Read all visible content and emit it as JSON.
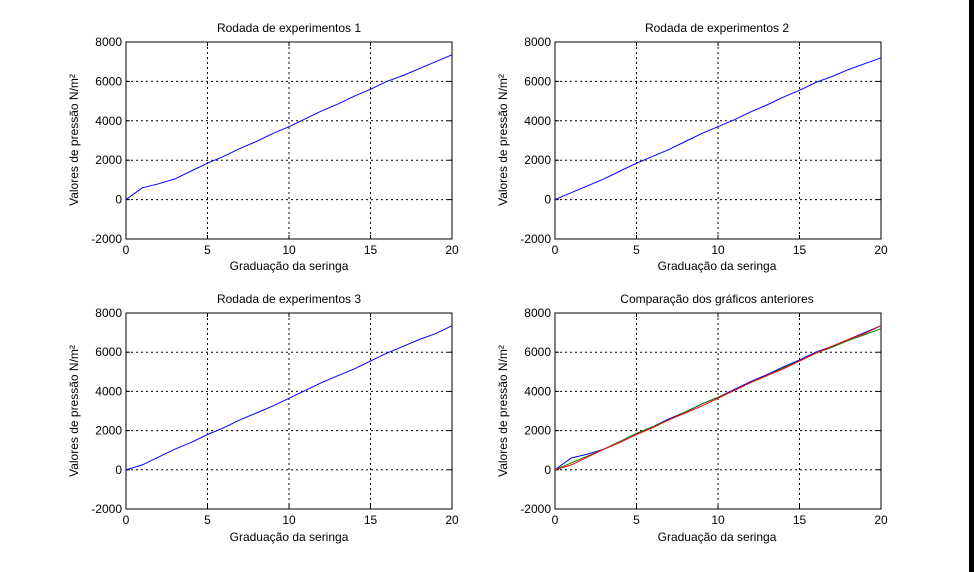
{
  "figure": {
    "background": "#ffffff",
    "axis_color": "#000000",
    "grid_color": "#000000"
  },
  "chart_data": [
    {
      "type": "line",
      "title": "Rodada de experimentos 1",
      "xlabel": "Graduação da seringa",
      "ylabel": "Valores de pressão N/m²",
      "xlim": [
        0,
        20
      ],
      "ylim": [
        -2000,
        8000
      ],
      "xticks": [
        "0",
        "5",
        "10",
        "15",
        "20"
      ],
      "yticks": [
        "-2000",
        "0",
        "2000",
        "4000",
        "6000",
        "8000"
      ],
      "grid": true,
      "series": [
        {
          "color": "#0000ff",
          "x": [
            0,
            0.5,
            1,
            2,
            3,
            4,
            5,
            6,
            7,
            8,
            9,
            10,
            11,
            12,
            13,
            14,
            15,
            16,
            17,
            18,
            19,
            20
          ],
          "y": [
            0,
            300,
            600,
            800,
            1050,
            1450,
            1850,
            2200,
            2600,
            2950,
            3350,
            3700,
            4100,
            4500,
            4850,
            5250,
            5600,
            6000,
            6300,
            6650,
            7000,
            7350
          ]
        }
      ]
    },
    {
      "type": "line",
      "title": "Rodada de experimentos 2",
      "xlabel": "Graduação da seringa",
      "ylabel": "Valores de pressão N/m²",
      "xlim": [
        0,
        20
      ],
      "ylim": [
        -2000,
        8000
      ],
      "xticks": [
        "0",
        "5",
        "10",
        "15",
        "20"
      ],
      "yticks": [
        "-2000",
        "0",
        "2000",
        "4000",
        "6000",
        "8000"
      ],
      "grid": true,
      "series": [
        {
          "color": "#0000ff",
          "x": [
            0,
            1,
            2,
            3,
            4,
            5,
            6,
            7,
            8,
            9,
            10,
            11,
            12,
            13,
            14,
            15,
            16,
            17,
            18,
            19,
            20
          ],
          "y": [
            0,
            350,
            700,
            1050,
            1450,
            1850,
            2200,
            2550,
            2950,
            3350,
            3700,
            4050,
            4450,
            4800,
            5200,
            5550,
            5950,
            6250,
            6600,
            6900,
            7200
          ]
        }
      ]
    },
    {
      "type": "line",
      "title": "Rodada de experimentos 3",
      "xlabel": "Graduação da seringa",
      "ylabel": "Valores de pressão N/m²",
      "xlim": [
        0,
        20
      ],
      "ylim": [
        -2000,
        8000
      ],
      "xticks": [
        "0",
        "5",
        "10",
        "15",
        "20"
      ],
      "yticks": [
        "-2000",
        "0",
        "2000",
        "4000",
        "6000",
        "8000"
      ],
      "grid": true,
      "series": [
        {
          "color": "#0000ff",
          "x": [
            0,
            1,
            2,
            3,
            4,
            5,
            6,
            7,
            8,
            9,
            10,
            11,
            12,
            13,
            14,
            15,
            16,
            17,
            18,
            19,
            20
          ],
          "y": [
            0,
            250,
            650,
            1050,
            1400,
            1800,
            2150,
            2550,
            2900,
            3250,
            3650,
            4050,
            4450,
            4800,
            5150,
            5550,
            5950,
            6300,
            6650,
            6950,
            7350
          ]
        }
      ]
    },
    {
      "type": "line",
      "title": "Comparação dos gráficos anteriores",
      "xlabel": "Graduação da seringa",
      "ylabel": "Valores de pressão N/m²",
      "xlim": [
        0,
        20
      ],
      "ylim": [
        -2000,
        8000
      ],
      "xticks": [
        "0",
        "5",
        "10",
        "15",
        "20"
      ],
      "yticks": [
        "-2000",
        "0",
        "2000",
        "4000",
        "6000",
        "8000"
      ],
      "grid": true,
      "series": [
        {
          "color": "#0000ff",
          "x": [
            0,
            0.5,
            1,
            2,
            3,
            4,
            5,
            6,
            7,
            8,
            9,
            10,
            11,
            12,
            13,
            14,
            15,
            16,
            17,
            18,
            19,
            20
          ],
          "y": [
            0,
            300,
            600,
            800,
            1050,
            1450,
            1850,
            2200,
            2600,
            2950,
            3350,
            3700,
            4100,
            4500,
            4850,
            5250,
            5600,
            6000,
            6300,
            6650,
            7000,
            7350
          ]
        },
        {
          "color": "#008000",
          "x": [
            0,
            1,
            2,
            3,
            4,
            5,
            6,
            7,
            8,
            9,
            10,
            11,
            12,
            13,
            14,
            15,
            16,
            17,
            18,
            19,
            20
          ],
          "y": [
            0,
            350,
            700,
            1050,
            1450,
            1850,
            2200,
            2550,
            2950,
            3350,
            3700,
            4050,
            4450,
            4800,
            5200,
            5550,
            5950,
            6250,
            6600,
            6900,
            7200
          ]
        },
        {
          "color": "#ff0000",
          "x": [
            0,
            1,
            2,
            3,
            4,
            5,
            6,
            7,
            8,
            9,
            10,
            11,
            12,
            13,
            14,
            15,
            16,
            17,
            18,
            19,
            20
          ],
          "y": [
            0,
            250,
            650,
            1050,
            1400,
            1800,
            2150,
            2550,
            2900,
            3250,
            3650,
            4050,
            4450,
            4800,
            5150,
            5550,
            5950,
            6300,
            6650,
            6950,
            7350
          ]
        }
      ]
    }
  ]
}
